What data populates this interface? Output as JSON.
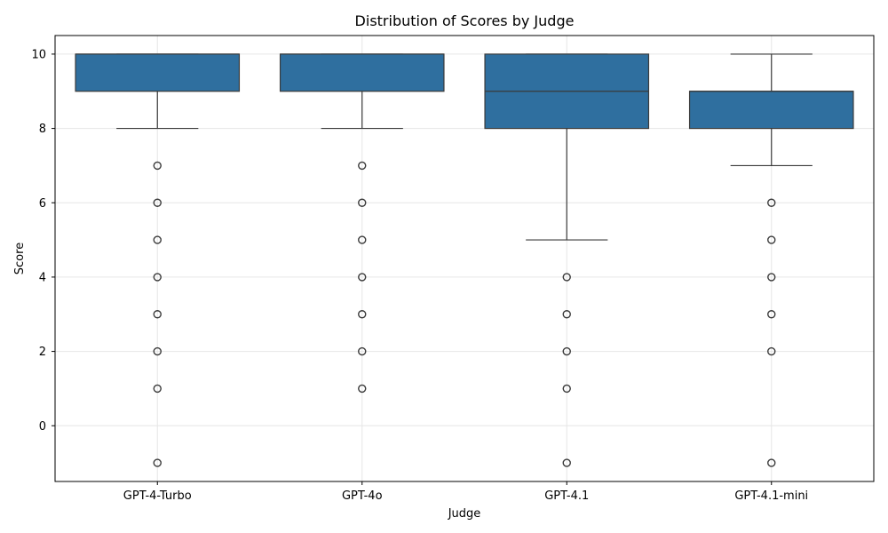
{
  "chart_data": {
    "type": "box",
    "title": "Distribution of Scores by Judge",
    "xlabel": "Judge",
    "ylabel": "Score",
    "ylim": [
      -1.5,
      10.5
    ],
    "yticks": [
      0,
      2,
      4,
      6,
      8,
      10
    ],
    "grid": true,
    "box_color": "#2f6f9f",
    "line_color": "#3a3a3a",
    "categories": [
      "GPT-4-Turbo",
      "GPT-4o",
      "GPT-4.1",
      "GPT-4.1-mini"
    ],
    "boxes": [
      {
        "name": "GPT-4-Turbo",
        "whisker_low": 8,
        "q1": 9,
        "median": 10,
        "q3": 10,
        "whisker_high": 10,
        "outliers": [
          7,
          6,
          5,
          4,
          3,
          2,
          1,
          -1
        ]
      },
      {
        "name": "GPT-4o",
        "whisker_low": 8,
        "q1": 9,
        "median": 10,
        "q3": 10,
        "whisker_high": 10,
        "outliers": [
          7,
          6,
          5,
          4,
          3,
          2,
          1
        ]
      },
      {
        "name": "GPT-4.1",
        "whisker_low": 5,
        "q1": 8,
        "median": 9,
        "q3": 10,
        "whisker_high": 10,
        "outliers": [
          4,
          3,
          2,
          1,
          -1
        ]
      },
      {
        "name": "GPT-4.1-mini",
        "whisker_low": 7,
        "q1": 8,
        "median": 9,
        "q3": 9,
        "whisker_high": 10,
        "outliers": [
          6,
          5,
          4,
          3,
          2,
          -1
        ]
      }
    ]
  }
}
